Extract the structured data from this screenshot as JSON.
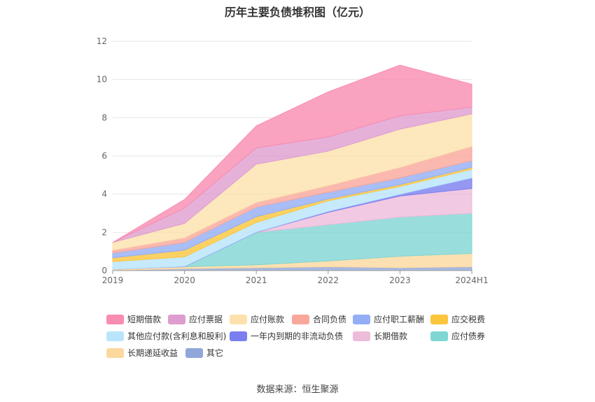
{
  "chart_data": {
    "type": "area",
    "stacked": true,
    "title": "历年主要负债堆积图（亿元）",
    "categories": [
      "2019",
      "2020",
      "2021",
      "2022",
      "2023",
      "2024H1"
    ],
    "ylim": [
      0,
      12
    ],
    "yticks": [
      "0",
      "2",
      "4",
      "6",
      "8",
      "10",
      "12"
    ],
    "xlabel": "",
    "ylabel": "",
    "legend_position": "bottom",
    "series": [
      {
        "name": "其它",
        "color": "#91a7d9",
        "values": [
          0.02,
          0.1,
          0.15,
          0.2,
          0.15,
          0.2
        ]
      },
      {
        "name": "长期递延收益",
        "color": "#fdd89e",
        "values": [
          0.05,
          0.1,
          0.15,
          0.3,
          0.6,
          0.7
        ]
      },
      {
        "name": "应付债券",
        "color": "#7fd6d3",
        "values": [
          0,
          0,
          1.7,
          1.9,
          2.05,
          2.1
        ]
      },
      {
        "name": "长期借款",
        "color": "#edbcdb",
        "values": [
          0,
          0,
          0,
          0.65,
          1.1,
          1.3
        ]
      },
      {
        "name": "一年内到期的非流动负债",
        "color": "#7b7ef0",
        "values": [
          0,
          0.02,
          0.02,
          0.05,
          0.1,
          0.55
        ]
      },
      {
        "name": "其他应付款(含利息和股利)",
        "color": "#b8e5fb",
        "values": [
          0.4,
          0.5,
          0.5,
          0.55,
          0.4,
          0.45
        ]
      },
      {
        "name": "应交税费",
        "color": "#fbc53c",
        "values": [
          0.2,
          0.35,
          0.3,
          0.1,
          0.1,
          0.1
        ]
      },
      {
        "name": "应付职工薪酬",
        "color": "#93aef5",
        "values": [
          0.25,
          0.4,
          0.5,
          0.35,
          0.35,
          0.35
        ]
      },
      {
        "name": "合同负债",
        "color": "#f9a69b",
        "values": [
          0.15,
          0.25,
          0.25,
          0.35,
          0.55,
          0.75
        ]
      },
      {
        "name": "应付账款",
        "color": "#fde1ad",
        "values": [
          0.4,
          0.75,
          2.0,
          1.8,
          2.0,
          1.7
        ]
      },
      {
        "name": "应付票据",
        "color": "#de9dcf",
        "values": [
          0,
          0.8,
          0.85,
          0.75,
          0.7,
          0.35
        ]
      },
      {
        "name": "短期借款",
        "color": "#f98cb1",
        "values": [
          0,
          0.45,
          1.15,
          2.35,
          2.65,
          1.2
        ]
      }
    ]
  },
  "legend": {
    "items": [
      {
        "label": "短期借款",
        "color": "#f98cb1"
      },
      {
        "label": "应付票据",
        "color": "#de9dcf"
      },
      {
        "label": "应付账款",
        "color": "#fde1ad"
      },
      {
        "label": "合同负债",
        "color": "#f9a69b"
      },
      {
        "label": "应付职工薪酬",
        "color": "#93aef5"
      },
      {
        "label": "应交税费",
        "color": "#fbc53c"
      },
      {
        "label": "其他应付款(含利息和股利)",
        "color": "#b8e5fb"
      },
      {
        "label": "一年内到期的非流动负债",
        "color": "#7b7ef0"
      },
      {
        "label": "长期借款",
        "color": "#edbcdb"
      },
      {
        "label": "应付债券",
        "color": "#7fd6d3"
      },
      {
        "label": "长期递延收益",
        "color": "#fdd89e"
      },
      {
        "label": "其它",
        "color": "#91a7d9"
      }
    ]
  },
  "source": "数据来源：恒生聚源"
}
